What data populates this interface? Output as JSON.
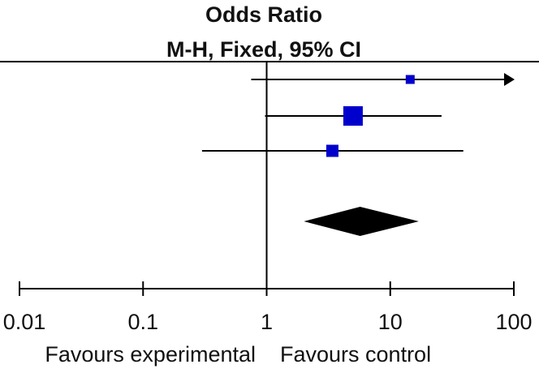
{
  "chart_data": {
    "type": "forest",
    "title": "Odds Ratio",
    "subtitle": "M-H, Fixed, 95% CI",
    "scale": "log",
    "xlim": [
      0.01,
      100
    ],
    "ticks": [
      {
        "value": 0.01,
        "label": "0.01"
      },
      {
        "value": 0.1,
        "label": "0.1"
      },
      {
        "value": 1,
        "label": "1"
      },
      {
        "value": 10,
        "label": "10"
      },
      {
        "value": 100,
        "label": "100"
      }
    ],
    "reference_line": 1,
    "studies": [
      {
        "or": 14.5,
        "lower": 0.75,
        "upper": 999,
        "arrow_right": true,
        "weight": "small"
      },
      {
        "or": 5.0,
        "lower": 0.97,
        "upper": 26,
        "arrow_right": false,
        "weight": "large"
      },
      {
        "or": 3.4,
        "lower": 0.3,
        "upper": 39,
        "arrow_right": false,
        "weight": "medium"
      }
    ],
    "pooled": {
      "or": 5.7,
      "lower": 2.0,
      "upper": 17
    },
    "favours_left": "Favours experimental",
    "favours_right": "Favours control",
    "colors": {
      "marker": "#0000cc",
      "diamond": "#000000",
      "line": "#000000"
    }
  }
}
